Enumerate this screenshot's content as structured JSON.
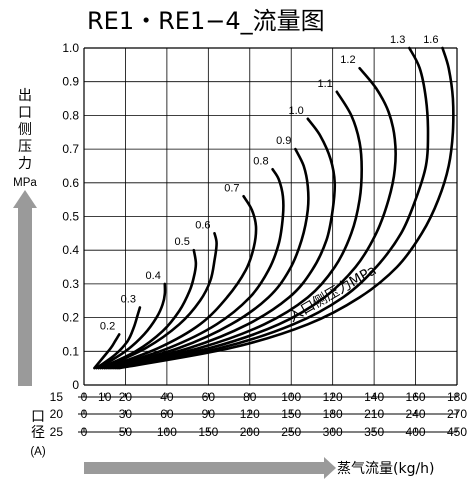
{
  "chart_data": {
    "type": "line",
    "title": "RE1・RE1−4_流量图",
    "ylabel_chars": [
      "出",
      "口",
      "侧",
      "压",
      "力"
    ],
    "ylabel_unit": "MPa",
    "inlet_label": "入口侧压力MPa",
    "xlabel": "蒸气流量(kg/h)",
    "port_label_chars": [
      "口",
      "径"
    ],
    "port_label_unit": "(A)",
    "xlim": [
      0,
      180
    ],
    "ylim": [
      0,
      1.0
    ],
    "yticks": [
      "0",
      "0.1",
      "0.2",
      "0.3",
      "0.4",
      "0.5",
      "0.6",
      "0.7",
      "0.8",
      "0.9",
      "1.0"
    ],
    "x_scales": [
      {
        "size": "15",
        "ticks": [
          "0",
          "10",
          "20",
          "40",
          "60",
          "80",
          "100",
          "120",
          "140",
          "160",
          "180"
        ]
      },
      {
        "size": "20",
        "ticks": [
          "0",
          "30",
          "60",
          "90",
          "120",
          "150",
          "180",
          "210",
          "240",
          "270"
        ]
      },
      {
        "size": "25",
        "ticks": [
          "0",
          "50",
          "100",
          "150",
          "200",
          "250",
          "300",
          "350",
          "400",
          "450"
        ]
      }
    ],
    "series": [
      {
        "name": "0.2",
        "x": [
          5,
          9,
          13,
          15,
          16,
          17
        ],
        "y": [
          0.05,
          0.08,
          0.11,
          0.13,
          0.14,
          0.15
        ]
      },
      {
        "name": "0.3",
        "x": [
          6,
          15,
          21,
          24,
          26,
          27
        ],
        "y": [
          0.05,
          0.09,
          0.13,
          0.17,
          0.21,
          0.23
        ]
      },
      {
        "name": "0.4",
        "x": [
          7,
          20,
          29,
          35,
          38,
          39,
          39
        ],
        "y": [
          0.05,
          0.1,
          0.15,
          0.2,
          0.24,
          0.27,
          0.3
        ]
      },
      {
        "name": "0.5",
        "x": [
          8,
          25,
          38,
          46,
          51,
          53,
          54,
          53
        ],
        "y": [
          0.05,
          0.1,
          0.16,
          0.22,
          0.28,
          0.32,
          0.36,
          0.4
        ]
      },
      {
        "name": "0.6",
        "x": [
          9,
          30,
          46,
          56,
          61,
          63,
          64,
          63
        ],
        "y": [
          0.05,
          0.11,
          0.18,
          0.25,
          0.31,
          0.37,
          0.42,
          0.45
        ]
      },
      {
        "name": "0.7",
        "x": [
          10,
          36,
          56,
          69,
          78,
          82,
          83,
          81,
          77
        ],
        "y": [
          0.05,
          0.11,
          0.18,
          0.26,
          0.34,
          0.41,
          0.47,
          0.52,
          0.56
        ]
      },
      {
        "name": "0.8",
        "x": [
          11,
          41,
          64,
          80,
          89,
          94,
          96,
          96,
          94,
          91
        ],
        "y": [
          0.05,
          0.11,
          0.18,
          0.26,
          0.34,
          0.42,
          0.5,
          0.56,
          0.61,
          0.64
        ]
      },
      {
        "name": "0.9",
        "x": [
          12,
          46,
          71,
          89,
          99,
          105,
          108,
          108,
          106,
          102
        ],
        "y": [
          0.05,
          0.11,
          0.18,
          0.26,
          0.34,
          0.43,
          0.52,
          0.59,
          0.65,
          0.7
        ]
      },
      {
        "name": "1.0",
        "x": [
          13,
          51,
          79,
          99,
          110,
          117,
          120,
          121,
          119,
          114,
          108
        ],
        "y": [
          0.05,
          0.11,
          0.18,
          0.26,
          0.34,
          0.43,
          0.52,
          0.6,
          0.67,
          0.74,
          0.79
        ]
      },
      {
        "name": "1.1",
        "x": [
          14,
          56,
          87,
          108,
          121,
          129,
          133,
          134,
          133,
          129,
          122
        ],
        "y": [
          0.05,
          0.11,
          0.18,
          0.26,
          0.35,
          0.45,
          0.55,
          0.64,
          0.72,
          0.8,
          0.87
        ]
      },
      {
        "name": "1.2",
        "x": [
          15,
          61,
          94,
          116,
          131,
          141,
          147,
          150,
          150,
          147,
          141,
          133
        ],
        "y": [
          0.05,
          0.11,
          0.18,
          0.26,
          0.35,
          0.45,
          0.55,
          0.64,
          0.73,
          0.81,
          0.88,
          0.94
        ]
      },
      {
        "name": "1.3",
        "x": [
          16,
          66,
          101,
          125,
          141,
          153,
          160,
          165,
          166,
          165,
          162,
          157
        ],
        "y": [
          0.05,
          0.11,
          0.18,
          0.26,
          0.35,
          0.45,
          0.55,
          0.65,
          0.75,
          0.85,
          0.94,
          1.0
        ]
      },
      {
        "name": "1.6",
        "x": [
          17,
          71,
          108,
          133,
          151,
          163,
          171,
          176,
          178,
          178,
          176,
          173
        ],
        "y": [
          0.05,
          0.11,
          0.18,
          0.26,
          0.35,
          0.45,
          0.55,
          0.65,
          0.75,
          0.85,
          0.94,
          1.0
        ]
      }
    ]
  }
}
